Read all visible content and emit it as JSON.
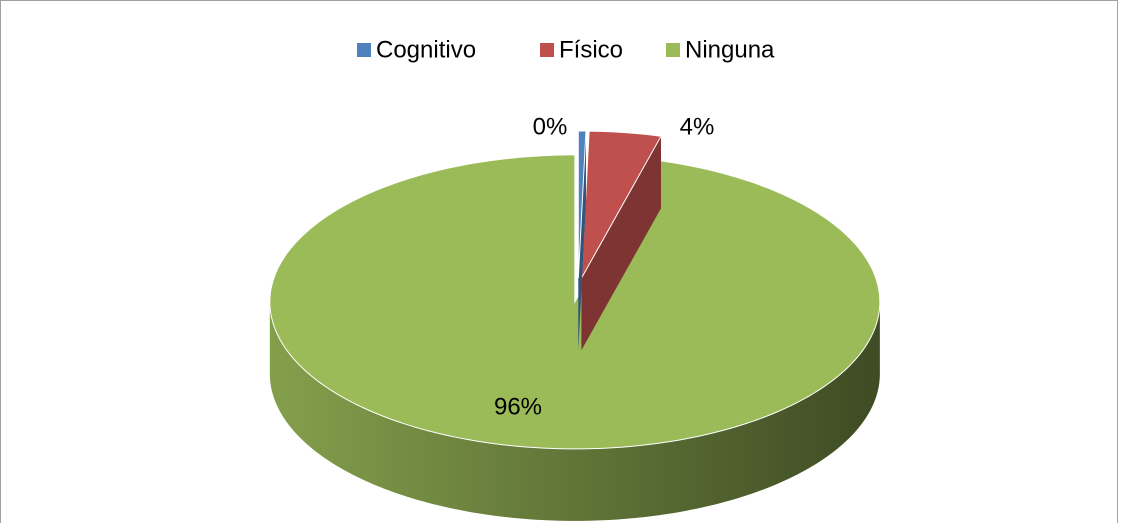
{
  "chart_data": {
    "type": "pie",
    "series": [
      {
        "name": "Cognitivo",
        "color": "#4f81bd"
      },
      {
        "name": "Físico",
        "color": "#c0504d"
      },
      {
        "name": "Ninguna",
        "color": "#9bbb59"
      }
    ],
    "categories": [
      "Cognitivo",
      "Físico",
      "Ninguna"
    ],
    "values": [
      0.4,
      3.8,
      95.8
    ],
    "value_labels": [
      "0%",
      "4%",
      "96%"
    ],
    "colors": [
      "#4f81bd",
      "#c0504d",
      "#9bbb59"
    ],
    "legend": "top"
  }
}
